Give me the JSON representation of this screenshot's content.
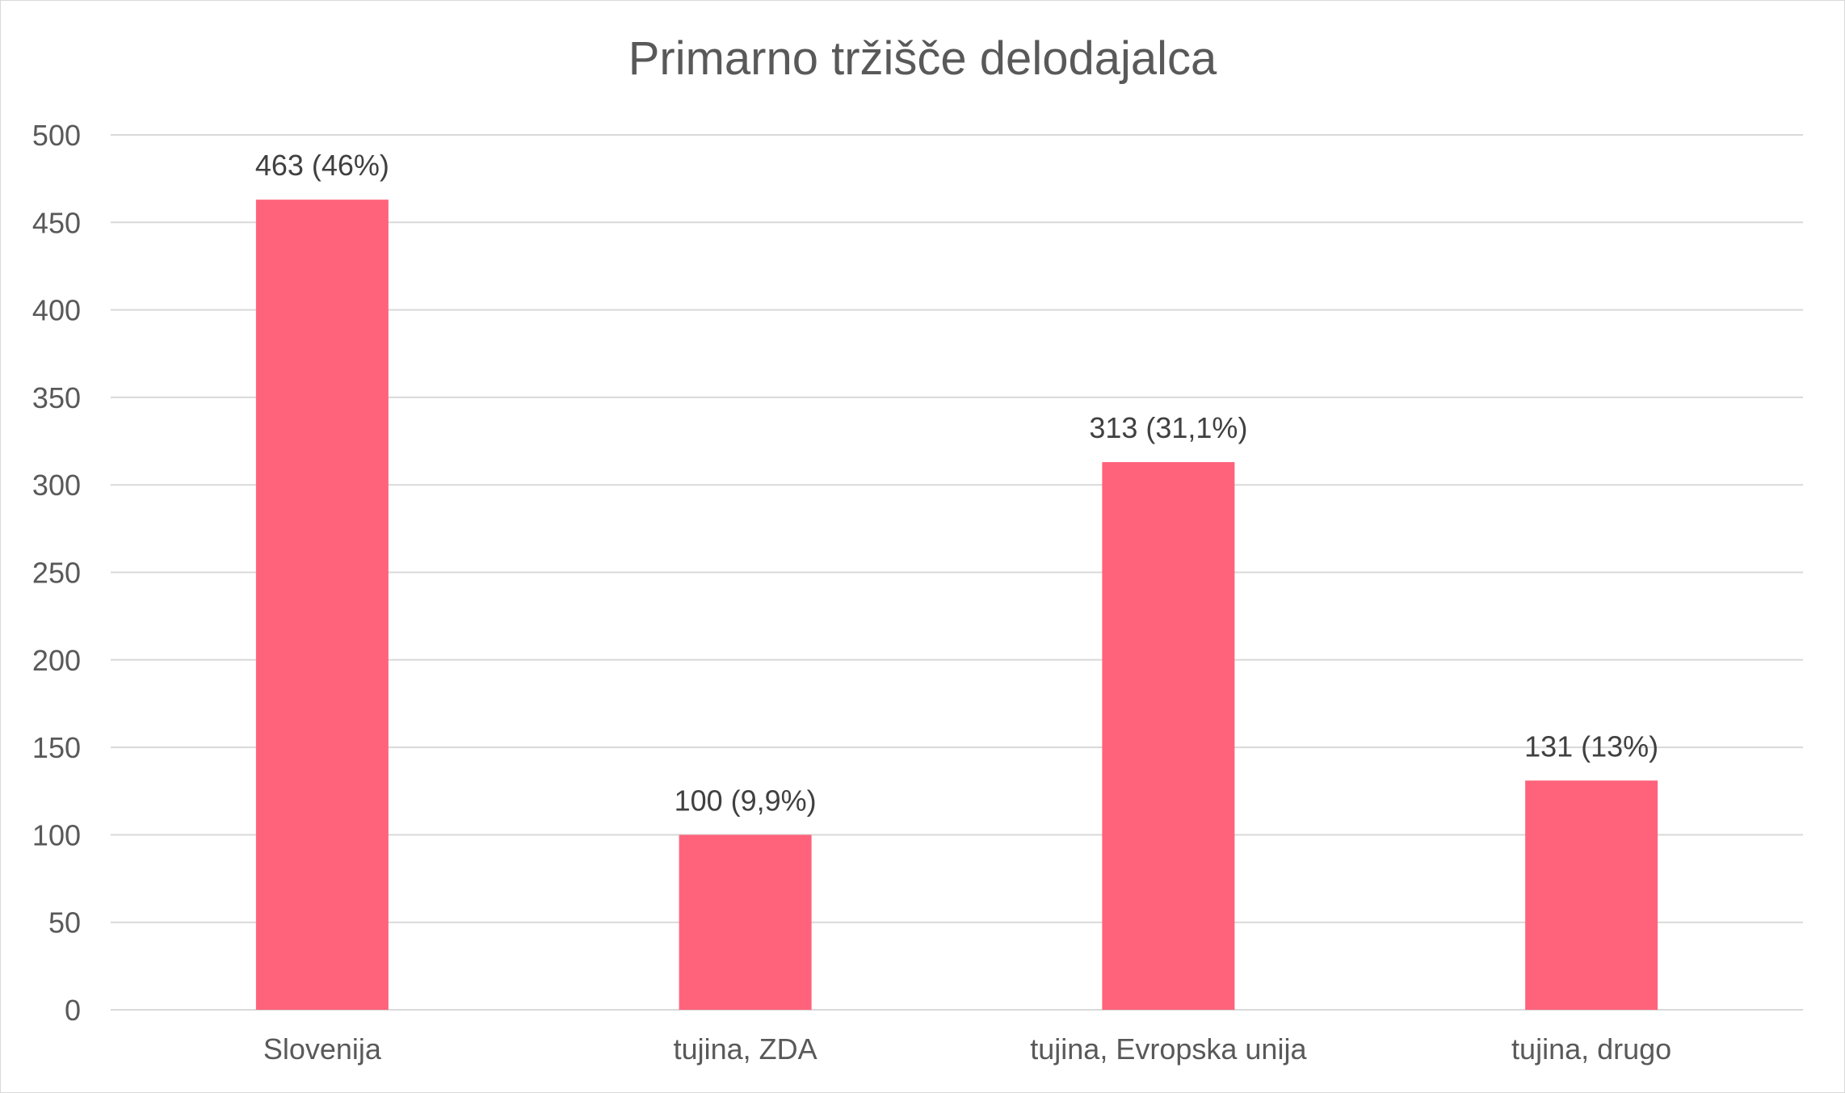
{
  "chart_data": {
    "type": "bar",
    "title": "Primarno tržišče delodajalca",
    "xlabel": "",
    "ylabel": "",
    "categories": [
      "Slovenija",
      "tujina, ZDA",
      "tujina, Evropska unija",
      "tujina, drugo"
    ],
    "values": [
      463,
      100,
      313,
      131
    ],
    "data_labels": [
      "463 (46%)",
      "100 (9,9%)",
      "313 (31,1%)",
      "131 (13%)"
    ],
    "ylim": [
      0,
      500
    ],
    "yticks": [
      0,
      50,
      100,
      150,
      200,
      250,
      300,
      350,
      400,
      450,
      500
    ],
    "grid": true,
    "legend": "none",
    "bar_color": "#ff637b",
    "grid_color": "#d9d9d9"
  }
}
